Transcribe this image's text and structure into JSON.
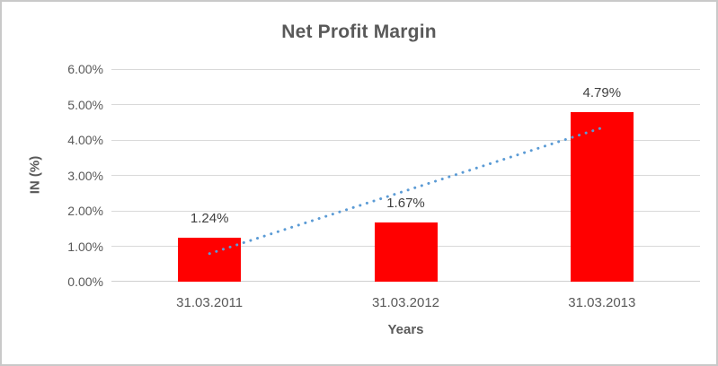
{
  "frame": {
    "background": "#FFFFFF",
    "border_color": "#C9C9C9"
  },
  "chart_data": {
    "type": "bar",
    "title": "Net Profit Margin",
    "xlabel": "Years",
    "ylabel": "IN (%)",
    "categories": [
      "31.03.2011",
      "31.03.2012",
      "31.03.2013"
    ],
    "values": [
      1.24,
      1.67,
      4.79
    ],
    "data_labels": [
      "1.24%",
      "1.67%",
      "4.79%"
    ],
    "ylim": [
      0,
      6
    ],
    "ytick_step": 1,
    "ytick_labels": [
      "0.00%",
      "1.00%",
      "2.00%",
      "3.00%",
      "4.00%",
      "5.00%",
      "6.00%"
    ],
    "grid": true,
    "legend": "none",
    "bar_color": "#FF0000",
    "trendline": {
      "type": "linear",
      "style": "dotted",
      "color": "#5B9BD5"
    },
    "text_color": "#595959",
    "data_label_color": "#404040",
    "gridline_color": "#D9D9D9",
    "axis_line_color": "#CFCFCF"
  }
}
